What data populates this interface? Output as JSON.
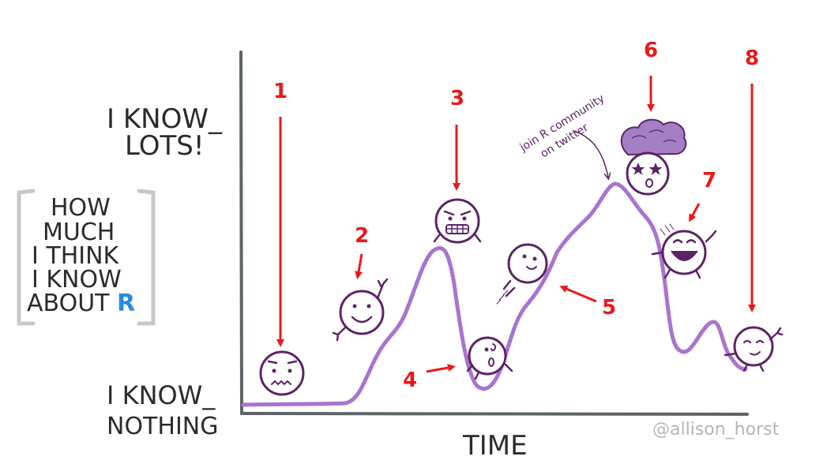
{
  "yaxis": {
    "top_label_line1": "I KNOW_",
    "top_label_line2": "LOTS!",
    "bottom_label_line1": "I KNOW_",
    "bottom_label_line2": "NOTHING"
  },
  "ylabel_box": {
    "lines": [
      "HOW",
      "MUCH",
      "I THINK",
      "I KNOW"
    ],
    "last_line_prefix": "ABOUT ",
    "last_line_highlight": "R"
  },
  "xaxis": {
    "label": "TIME"
  },
  "annotation": {
    "line1": "join R community",
    "line2": "on twitter"
  },
  "credit": "@allison_horst",
  "markers": [
    "1",
    "2",
    "3",
    "4",
    "5",
    "6",
    "7",
    "8"
  ],
  "colors": {
    "curve": "#a874cf",
    "face": "#5c2466",
    "arrow": "#e8191b",
    "axis": "#5d6468",
    "r_blue": "#2b8ae0",
    "bracket": "#c7c7c7",
    "text": "#2b2b2b",
    "credit": "#b5b5b5",
    "hair": "#a57fc4"
  }
}
